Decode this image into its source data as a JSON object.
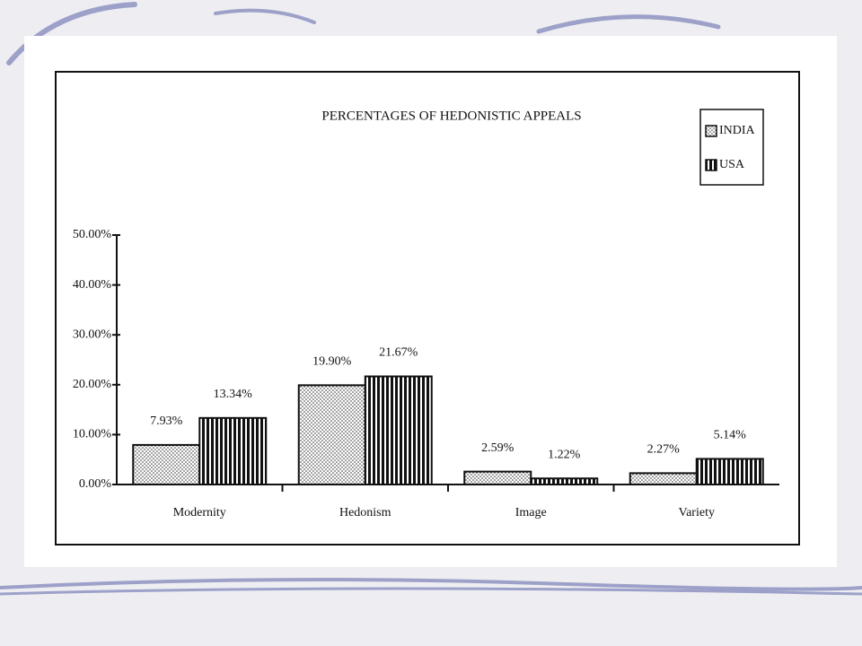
{
  "chart_data": {
    "type": "bar",
    "title": "PERCENTAGES OF HEDONISTIC APPEALS",
    "categories": [
      "Modernity",
      "Hedonism",
      "Image",
      "Variety"
    ],
    "series": [
      {
        "name": "INDIA",
        "pattern": "dots",
        "values": [
          7.93,
          19.9,
          2.59,
          2.27
        ],
        "value_labels": [
          "7.93%",
          "19.90%",
          "2.59%",
          "2.27%"
        ]
      },
      {
        "name": "USA",
        "pattern": "stripes",
        "values": [
          13.34,
          21.67,
          1.22,
          5.14
        ],
        "value_labels": [
          "13.34%",
          "21.67%",
          "1.22%",
          "5.14%"
        ]
      }
    ],
    "ylim": [
      0,
      50
    ],
    "yticks": [
      {
        "value": 0,
        "label": "0.00%"
      },
      {
        "value": 10,
        "label": "10.00%"
      },
      {
        "value": 20,
        "label": "20.00%"
      },
      {
        "value": 30,
        "label": "30.00%"
      },
      {
        "value": 40,
        "label": "40.00%"
      },
      {
        "value": 50,
        "label": "50.00%"
      }
    ],
    "legend": "upper right"
  }
}
